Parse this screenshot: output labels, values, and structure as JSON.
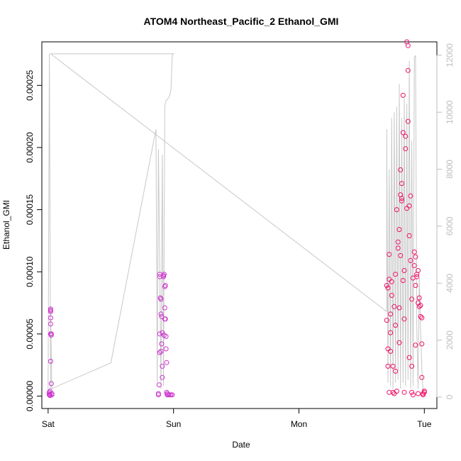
{
  "chart_data": {
    "type": "scatter",
    "title": "ATOM4 Northeast_Pacific_2 Ethanol_GMI",
    "xlabel": "Date",
    "ylabel": "Ethanol_GMI",
    "x_ticks": [
      "Sat",
      "Sun",
      "Mon",
      "Tue"
    ],
    "x_range_days": [
      -0.05,
      3.1
    ],
    "ylim": [
      -1e-05,
      0.000285
    ],
    "y_ticks": [
      "0.00000",
      "0.00005",
      "0.00010",
      "0.00015",
      "0.00020",
      "0.00025"
    ],
    "y_tick_values": [
      0,
      5e-05,
      0.0001,
      0.00015,
      0.0002,
      0.00025
    ],
    "y2_ticks": [
      "0",
      "2000",
      "4000",
      "6000",
      "8000",
      "10000",
      "12000"
    ],
    "y2_tick_values": [
      0,
      2000,
      4000,
      6000,
      8000,
      10000,
      12000
    ],
    "y2_range": [
      -400,
      12470
    ],
    "colors": {
      "point_left": "#cc33cc",
      "point_right": "#ee1166",
      "altitude_line": "#c8c8c8",
      "right_axis": "#bdbdbd"
    },
    "series": [
      {
        "kind": "points",
        "x": [
          0.01,
          0.01,
          0.01,
          0.015,
          0.015,
          0.015,
          0.02,
          0.02,
          0.02,
          0.02,
          0.02,
          0.02,
          0.02,
          0.025,
          0.025,
          0.025,
          0.03,
          0.03,
          0.88,
          0.88,
          0.885,
          0.89,
          0.89,
          0.89,
          0.89,
          0.895,
          0.9,
          0.9,
          0.9,
          0.905,
          0.905,
          0.91,
          0.91,
          0.91,
          0.92,
          0.92,
          0.925,
          0.925,
          0.93,
          0.93,
          0.93,
          0.935,
          0.935,
          0.94,
          0.94,
          0.945,
          0.945,
          0.95,
          0.95,
          0.96,
          0.97,
          0.98,
          0.99
        ],
        "y": [
          2e-06,
          1e-06,
          3e-06,
          5e-07,
          1e-06,
          4e-06,
          6.8e-05,
          6.9e-05,
          7e-05,
          6.3e-05,
          5.8e-05,
          5e-05,
          2.8e-05,
          4.9e-05,
          5e-05,
          1e-05,
          1e-06,
          2e-06,
          1e-06,
          2e-06,
          9e-06,
          9.6e-05,
          9.8e-05,
          5e-05,
          3.5e-05,
          7.9e-05,
          7.8e-05,
          6.6e-05,
          3.6e-05,
          4.2e-05,
          6.4e-05,
          5.1e-05,
          2.4e-05,
          1.5e-05,
          9.6e-05,
          9.7e-05,
          9.8e-05,
          4.9e-05,
          8.8e-05,
          7.1e-05,
          6.2e-05,
          8.9e-05,
          6.2e-05,
          4.8e-05,
          3.8e-05,
          2.7e-05,
          3e-06,
          2e-06,
          1e-06,
          1e-06,
          1e-06,
          1e-06,
          1e-06
        ]
      },
      {
        "kind": "points",
        "x": [
          2.7,
          2.7,
          2.71,
          2.71,
          2.71,
          2.72,
          2.72,
          2.72,
          2.73,
          2.73,
          2.73,
          2.74,
          2.74,
          2.75,
          2.75,
          2.76,
          2.76,
          2.77,
          2.77,
          2.77,
          2.78,
          2.78,
          2.79,
          2.79,
          2.8,
          2.8,
          2.8,
          2.81,
          2.81,
          2.81,
          2.82,
          2.82,
          2.82,
          2.83,
          2.83,
          2.83,
          2.84,
          2.84,
          2.84,
          2.85,
          2.85,
          2.86,
          2.86,
          2.87,
          2.87,
          2.87,
          2.88,
          2.88,
          2.88,
          2.89,
          2.89,
          2.9,
          2.9,
          2.9,
          2.91,
          2.91,
          2.92,
          2.92,
          2.93,
          2.93,
          2.93,
          2.94,
          2.94,
          2.95,
          2.95,
          2.95,
          2.96,
          2.96,
          2.97,
          2.97,
          2.98,
          2.98,
          2.98,
          2.99,
          2.99,
          3.0,
          3.0
        ],
        "y": [
          8.9e-05,
          6.1e-05,
          2.4e-05,
          3.8e-05,
          8.7e-05,
          0.000114,
          9.4e-05,
          3e-06,
          5.1e-05,
          6.6e-05,
          3.6e-05,
          9.2e-05,
          8.1e-05,
          3e-06,
          2.4e-05,
          2e-06,
          7.2e-05,
          9.8e-05,
          5.7e-05,
          2e-05,
          4e-06,
          0.00015,
          0.000124,
          0.000119,
          0.000134,
          7.1e-05,
          4.3e-05,
          0.000113,
          0.000182,
          0.000162,
          0.000157,
          0.000159,
          0.000171,
          0.000242,
          0.000212,
          9.3e-05,
          3e-06,
          0.000101,
          6.2e-05,
          0.000199,
          0.000209,
          0.000151,
          0.000285,
          0.000282,
          0.000221,
          0.000262,
          0.000153,
          0.000129,
          3.1e-05,
          0.000161,
          0.000109,
          7.8e-05,
          2.4e-05,
          3e-06,
          1e-06,
          9.5e-05,
          0.000105,
          0.000116,
          0.000112,
          8.9e-05,
          4.1e-05,
          9.6e-05,
          9.8e-05,
          0.000101,
          7.5e-05,
          2e-06,
          7.9e-05,
          7.2e-05,
          6.4e-05,
          7.3e-05,
          6.3e-05,
          4.2e-05,
          1.5e-05,
          2e-06,
          1e-06,
          4e-06,
          3e-06
        ]
      },
      {
        "kind": "line",
        "name": "",
        "x": [
          0.0,
          0.01,
          0.01,
          0.02,
          0.02,
          0.03,
          0.5,
          0.86,
          0.87,
          0.88,
          0.9,
          0.91,
          0.92,
          0.93,
          0.94,
          0.96,
          0.97,
          0.98,
          0.99,
          1.0,
          1.0,
          0.98,
          0.97,
          0.95,
          0.94,
          0.9,
          0.5,
          0.02,
          0.02,
          2.7,
          2.7,
          2.71,
          2.72,
          2.73,
          2.74,
          2.75,
          2.76,
          2.77,
          2.78,
          2.79,
          2.8,
          2.81,
          2.82,
          2.83,
          2.84,
          2.85,
          2.86,
          2.87,
          2.88,
          2.89,
          2.9,
          2.91,
          2.92,
          2.93,
          2.94,
          2.95,
          2.96,
          2.97,
          2.98,
          2.99,
          3.0
        ],
        "y": [
          200,
          12050,
          12050,
          300,
          3000,
          300,
          1200,
          9400,
          500,
          8700,
          300,
          8500,
          400,
          10200,
          10400,
          10500,
          10600,
          10800,
          12000,
          12050,
          12050,
          12050,
          12050,
          12050,
          12050,
          12050,
          12050,
          12050,
          12050,
          3000,
          9400,
          500,
          8000,
          400,
          9800,
          300,
          10000,
          500,
          10200,
          600,
          11000,
          300,
          9800,
          500,
          10500,
          400,
          10300,
          600,
          11800,
          300,
          9000,
          400,
          11900,
          12000,
          2400,
          300,
          4200,
          2400,
          1000,
          200,
          300
        ]
      }
    ]
  }
}
